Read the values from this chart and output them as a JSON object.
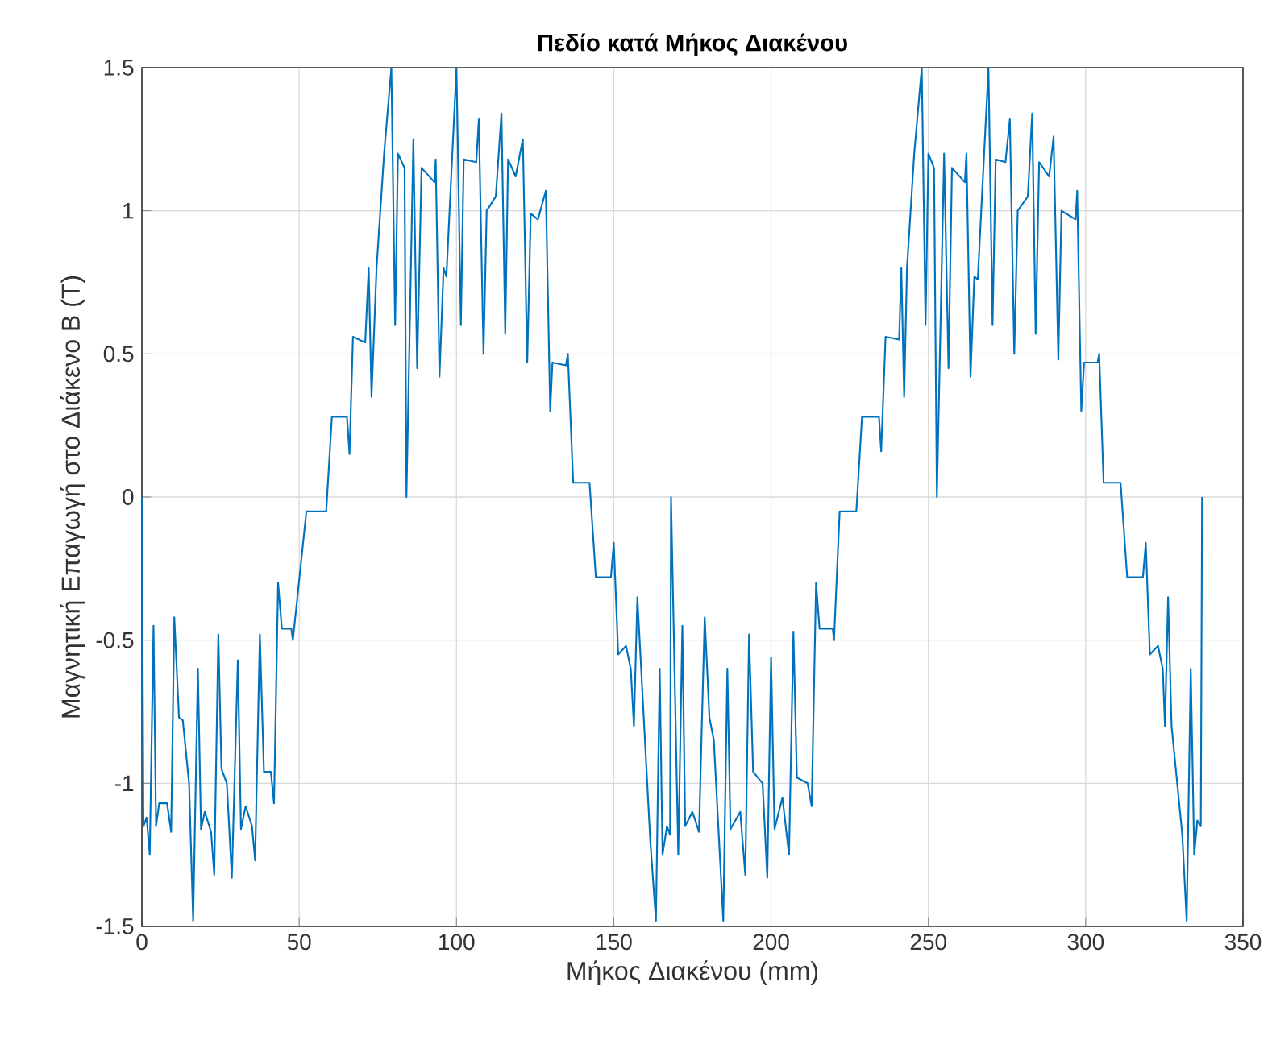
{
  "chart_data": {
    "type": "line",
    "title": "Πεδίο κατά Μήκος Διακένου",
    "xlabel": "Μήκος Διακένου (mm)",
    "ylabel": "Μαγνητική Επαγωγή στο Διάκενο B (T)",
    "x": [
      0,
      0.5,
      1.5,
      2.5,
      3.7,
      4.5,
      5.5,
      8,
      9.3,
      10.3,
      11.8,
      13,
      15,
      16.3,
      17.8,
      18.8,
      20,
      22,
      23,
      24.3,
      25.3,
      27,
      28.6,
      30.5,
      31.5,
      33,
      35,
      36,
      37.5,
      38.8,
      41,
      42,
      43.3,
      44.5,
      47.5,
      48,
      52.3,
      58.6,
      60.4,
      65.2,
      66,
      67.1,
      71,
      72.1,
      73,
      74.6,
      77,
      79.3,
      80.5,
      81.4,
      83.5,
      84.1,
      86.3,
      87.5,
      88.9,
      93,
      93.4,
      94.6,
      95.9,
      96.8,
      100,
      101.4,
      102.3,
      106.3,
      107.1,
      108.6,
      109.6,
      112.5,
      114.3,
      115.5,
      116.4,
      118.8,
      121.1,
      122.5,
      123.6,
      125.9,
      128.4,
      129.8,
      130.5,
      134.8,
      135.4,
      137.1,
      142.3,
      144.3,
      149.1,
      150,
      151.4,
      153.9,
      155.4,
      156.4,
      157.5,
      161.6,
      163.4,
      164.6,
      165.5,
      166.9,
      167.9,
      168.2,
      170.5,
      171.8,
      172.7,
      175,
      177.1,
      178.9,
      180.4,
      181.8,
      184.8,
      186.1,
      187.1,
      190.2,
      191.8,
      193,
      194.3,
      197.3,
      198.8,
      200,
      201.1,
      203.6,
      205.7,
      207.1,
      208.2,
      211.6,
      212.9,
      214.3,
      215.4,
      219.6,
      220,
      221.8,
      227.1,
      228.9,
      234.3,
      235,
      236.4,
      240.7,
      241.4,
      242.3,
      243.2,
      245.5,
      247.9,
      249.1,
      250,
      251.8,
      252.7,
      255,
      256.4,
      257.5,
      261.6,
      262.1,
      263.4,
      264.6,
      265.7,
      269.1,
      270.4,
      271.4,
      274.5,
      275.9,
      277.3,
      278.4,
      281.6,
      283,
      284.1,
      285.2,
      288.4,
      289.8,
      291.3,
      292.3,
      296.8,
      297.3,
      298.6,
      299.5,
      303.8,
      304.3,
      305.7,
      311.1,
      313.2,
      318.2,
      319.1,
      320.4,
      323,
      324.5,
      325.2,
      326.2,
      327.3,
      330.7,
      332.1,
      333.4,
      334.5,
      335.5,
      336.6,
      337
    ],
    "values": [
      0,
      -1.15,
      -1.12,
      -1.25,
      -0.45,
      -1.15,
      -1.07,
      -1.07,
      -1.17,
      -0.42,
      -0.77,
      -0.78,
      -1.0,
      -1.48,
      -0.6,
      -1.16,
      -1.1,
      -1.17,
      -1.32,
      -0.48,
      -0.95,
      -1.0,
      -1.33,
      -0.57,
      -1.16,
      -1.08,
      -1.15,
      -1.27,
      -0.48,
      -0.96,
      -0.96,
      -1.07,
      -0.3,
      -0.46,
      -0.46,
      -0.5,
      -0.05,
      -0.05,
      0.28,
      0.28,
      0.15,
      0.56,
      0.54,
      0.8,
      0.35,
      0.8,
      1.2,
      1.5,
      0.6,
      1.2,
      1.15,
      0.0,
      1.25,
      0.45,
      1.15,
      1.1,
      1.18,
      0.42,
      0.8,
      0.77,
      1.5,
      0.6,
      1.18,
      1.17,
      1.32,
      0.5,
      1.0,
      1.05,
      1.34,
      0.57,
      1.18,
      1.12,
      1.25,
      0.47,
      0.99,
      0.97,
      1.07,
      0.3,
      0.47,
      0.46,
      0.5,
      0.05,
      0.05,
      -0.28,
      -0.28,
      -0.16,
      -0.55,
      -0.52,
      -0.6,
      -0.8,
      -0.35,
      -1.2,
      -1.48,
      -0.6,
      -1.25,
      -1.15,
      -1.18,
      0.0,
      -1.25,
      -0.45,
      -1.15,
      -1.1,
      -1.17,
      -0.42,
      -0.77,
      -0.85,
      -1.48,
      -0.6,
      -1.16,
      -1.1,
      -1.32,
      -0.48,
      -0.96,
      -1.0,
      -1.33,
      -0.56,
      -1.16,
      -1.05,
      -1.25,
      -0.47,
      -0.98,
      -1.0,
      -1.08,
      -0.3,
      -0.46,
      -0.46,
      -0.5,
      -0.05,
      -0.05,
      0.28,
      0.28,
      0.16,
      0.56,
      0.55,
      0.8,
      0.35,
      0.8,
      1.2,
      1.5,
      0.6,
      1.2,
      1.15,
      0.0,
      1.2,
      0.45,
      1.15,
      1.1,
      1.2,
      0.42,
      0.77,
      0.76,
      1.5,
      0.6,
      1.18,
      1.17,
      1.32,
      0.5,
      1.0,
      1.05,
      1.34,
      0.57,
      1.17,
      1.12,
      1.26,
      0.48,
      1.0,
      0.97,
      1.07,
      0.3,
      0.47,
      0.47,
      0.5,
      0.05,
      0.05,
      -0.28,
      -0.28,
      -0.16,
      -0.55,
      -0.52,
      -0.6,
      -0.8,
      -0.35,
      -0.8,
      -1.18,
      -1.48,
      -0.6,
      -1.25,
      -1.13,
      -1.15,
      0.0
    ],
    "color": "#0072bd",
    "xlim": [
      0,
      350
    ],
    "ylim": [
      -1.5,
      1.5
    ],
    "xticks": [
      0,
      50,
      100,
      150,
      200,
      250,
      300,
      350
    ],
    "yticks": [
      -1.5,
      -1,
      -0.5,
      0,
      0.5,
      1,
      1.5
    ],
    "grid": true
  }
}
